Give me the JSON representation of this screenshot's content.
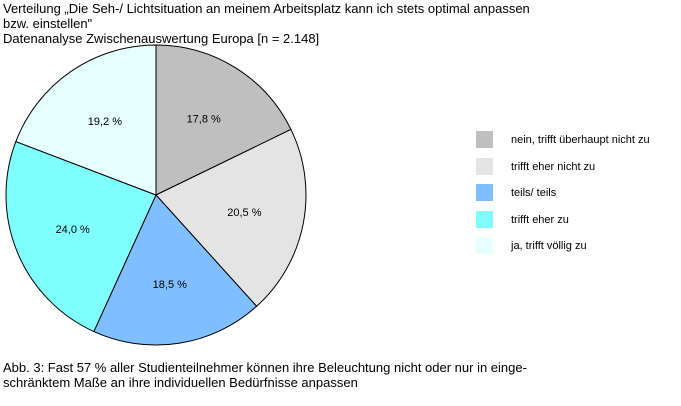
{
  "header": {
    "title_line1": "Verteilung „Die Seh-/ Lichtsituation an meinem Arbeitsplatz kann ich stets optimal anpassen",
    "title_line2": "bzw. einstellen\"",
    "subtitle": "Datenanalyse Zwischenauswertung Europa [n = 2.148]"
  },
  "caption": {
    "line1": "Abb. 3: Fast 57 % aller Studienteilnehmer können ihre Beleuchtung nicht oder nur in einge-",
    "line2": "schränktem Maße an ihre individuellen Bedürfnisse anpassen"
  },
  "chart_data": {
    "type": "pie",
    "title": "Verteilung „Die Seh-/ Lichtsituation an meinem Arbeitsplatz kann ich stets optimal anpassen bzw. einstellen\"",
    "subtitle": "Datenanalyse Zwischenauswertung Europa [n = 2.148]",
    "categories": [
      "nein, trifft überhaupt nicht zu",
      "trifft eher nicht zu",
      "teils/ teils",
      "trifft eher zu",
      "ja, trifft völlig zu"
    ],
    "values": [
      17.8,
      20.5,
      18.5,
      24.0,
      19.2
    ],
    "labels": [
      "17,8 %",
      "20,5 %",
      "18,5 %",
      "24,0 %",
      "19,2 %"
    ],
    "colors": [
      "#bfbfbf",
      "#e4e4e4",
      "#80bfff",
      "#80ffff",
      "#e6ffff"
    ],
    "legend_position": "right",
    "start_angle_deg": 0,
    "direction": "clockwise"
  }
}
